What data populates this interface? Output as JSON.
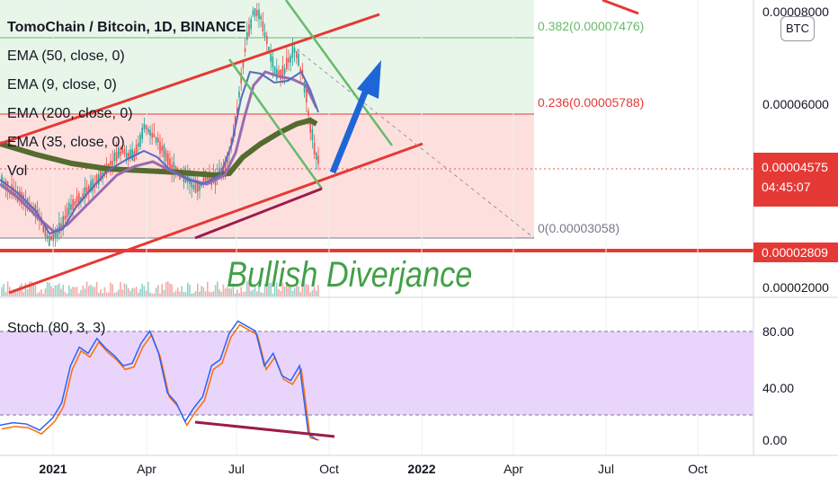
{
  "chart_data": [
    {
      "type": "candlestick",
      "symbol": "TomoChain / Bitcoin, 1D, BINANCE",
      "legend": [
        "TomoChain / Bitcoin, 1D, BINANCE",
        "EMA (50, close, 0)",
        "EMA (9, close, 0)",
        "EMA (200, close, 0)",
        "EMA (35, close, 0)",
        "Vol"
      ],
      "y_ticks": [
        "0.00008000",
        "0.00006000",
        "0.00004575",
        "0.00002809",
        "0.00002000"
      ],
      "current_price": "0.00004575",
      "countdown": "04:45:07",
      "horizontal_level": "0.00002809",
      "badge": "BTC",
      "fib_levels": [
        {
          "label": "0.382(0.00007476)",
          "color": "#66bb6a"
        },
        {
          "label": "0.236(0.00005788)",
          "color": "#e53935"
        },
        {
          "label": "0(0.00003058)",
          "color": "#787b86"
        }
      ],
      "annotation": "Bullish Diverjance",
      "colors": {
        "up": "#26a69a",
        "down": "#ef5350",
        "ema_long": "#556b2f",
        "ema_fast": "#5c6bc0",
        "ema_mid": "#9c6bb0",
        "channel": "#e53935",
        "down_channel": "#66bb6a",
        "arrow": "#1e66d8",
        "divergence": "#9c1b4b"
      }
    },
    {
      "type": "line",
      "title": "Stoch (80, 3, 3)",
      "y_ticks": [
        "80.00",
        "40.00",
        "0.00"
      ],
      "ylim": [
        0,
        100
      ],
      "bands": [
        20,
        80
      ],
      "series": [
        {
          "name": "%K",
          "color": "#2962ff"
        },
        {
          "name": "%D",
          "color": "#ff6d00"
        }
      ],
      "points_k": [
        [
          0,
          12
        ],
        [
          15,
          14
        ],
        [
          30,
          13
        ],
        [
          45,
          8
        ],
        [
          60,
          18
        ],
        [
          70,
          30
        ],
        [
          80,
          60
        ],
        [
          90,
          75
        ],
        [
          100,
          70
        ],
        [
          110,
          82
        ],
        [
          120,
          74
        ],
        [
          130,
          68
        ],
        [
          140,
          60
        ],
        [
          150,
          62
        ],
        [
          160,
          78
        ],
        [
          170,
          88
        ],
        [
          180,
          70
        ],
        [
          190,
          38
        ],
        [
          200,
          30
        ],
        [
          210,
          15
        ],
        [
          220,
          26
        ],
        [
          230,
          35
        ],
        [
          240,
          60
        ],
        [
          250,
          65
        ],
        [
          260,
          86
        ],
        [
          270,
          96
        ],
        [
          280,
          92
        ],
        [
          290,
          88
        ],
        [
          300,
          60
        ],
        [
          310,
          70
        ],
        [
          320,
          52
        ],
        [
          330,
          48
        ],
        [
          340,
          60
        ],
        [
          350,
          5
        ],
        [
          360,
          0
        ]
      ]
    }
  ],
  "time_axis": [
    "2021",
    "Apr",
    "Jul",
    "Oct",
    "2022",
    "Apr",
    "Jul",
    "Oct"
  ]
}
